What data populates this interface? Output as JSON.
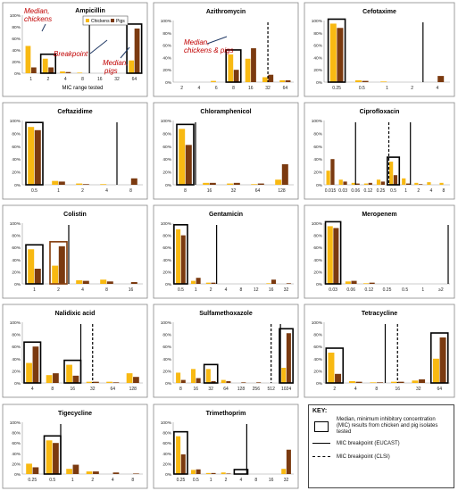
{
  "legend": {
    "chickens": "Chickens",
    "pigs": "Pigs"
  },
  "colors": {
    "chickens": "#F8B912",
    "pigs": "#7B3A10",
    "arrow": "#1F3864",
    "annotation": "#C00000"
  },
  "key": {
    "title": "KEY:",
    "items": [
      {
        "symbol": "box",
        "text": "Median, minimum inhibitory concentration (MIC) results from chicken and pig isolates tested"
      },
      {
        "symbol": "solid",
        "text": "MIC breakpoint (EUCAST)"
      },
      {
        "symbol": "dashed",
        "text": "MIC breakpoint (CLSI)"
      }
    ]
  },
  "chart_data": [
    {
      "type": "bar",
      "title": "Ampicillin",
      "xlabel": "MIC range tested",
      "ylabel": "",
      "ylim": [
        0,
        100
      ],
      "y_ticks": [
        "0%",
        "20%",
        "40%",
        "60%",
        "80%",
        "100%"
      ],
      "categories": [
        "1",
        "2",
        "4",
        "8",
        "16",
        "32",
        "64"
      ],
      "series": [
        {
          "name": "Chickens",
          "values": [
            47,
            25,
            3,
            1,
            0,
            0,
            22
          ]
        },
        {
          "name": "Pigs",
          "values": [
            10,
            10,
            2,
            0,
            0,
            0,
            77
          ]
        }
      ],
      "median_boxes": [
        {
          "category": "2"
        },
        {
          "category": "64"
        }
      ],
      "breakpoints": [
        {
          "category": "8",
          "position": "right",
          "style": "solid"
        }
      ],
      "annotations": [
        {
          "text": "Median, chickens"
        },
        {
          "text": "Breakpoint"
        },
        {
          "text": "Median, pigs"
        }
      ]
    },
    {
      "type": "bar",
      "title": "Azithromycin",
      "xlabel": "",
      "ylabel": "",
      "ylim": [
        0,
        100
      ],
      "y_ticks": [
        "0%",
        "20%",
        "40%",
        "60%",
        "80%",
        "100%"
      ],
      "categories": [
        "2",
        "4",
        "6",
        "8",
        "16",
        "32",
        "64"
      ],
      "series": [
        {
          "name": "Chickens",
          "values": [
            0,
            0,
            2,
            45,
            38,
            8,
            3
          ]
        },
        {
          "name": "Pigs",
          "values": [
            0,
            0,
            0,
            20,
            55,
            12,
            3
          ]
        }
      ],
      "median_boxes": [
        {
          "category": "8"
        }
      ],
      "breakpoints": [
        {
          "category": "32",
          "position": "center",
          "style": "dashed"
        }
      ],
      "annotations": [
        {
          "text": "Median, chickens & pigs"
        }
      ]
    },
    {
      "type": "bar",
      "title": "Cefotaxime",
      "xlabel": "",
      "ylabel": "",
      "ylim": [
        0,
        100
      ],
      "y_ticks": [
        "0%",
        "20%",
        "40%",
        "60%",
        "80%",
        "100%"
      ],
      "categories": [
        "0.25",
        "0.5",
        "1",
        "2",
        "4"
      ],
      "series": [
        {
          "name": "Chickens",
          "values": [
            95,
            3,
            1,
            0,
            0
          ]
        },
        {
          "name": "Pigs",
          "values": [
            88,
            2,
            0,
            0,
            10
          ]
        }
      ],
      "median_boxes": [
        {
          "category": "0.25"
        }
      ],
      "breakpoints": [
        {
          "category": "2",
          "position": "right",
          "style": "solid"
        }
      ]
    },
    {
      "type": "bar",
      "title": "Ceftazidime",
      "xlabel": "",
      "ylabel": "",
      "ylim": [
        0,
        100
      ],
      "y_ticks": [
        "0%",
        "20%",
        "40%",
        "60%",
        "80%",
        "100%"
      ],
      "categories": [
        "0.5",
        "1",
        "2",
        "4",
        "8"
      ],
      "series": [
        {
          "name": "Chickens",
          "values": [
            90,
            6,
            2,
            1,
            0
          ]
        },
        {
          "name": "Pigs",
          "values": [
            85,
            5,
            1,
            0,
            10
          ]
        }
      ],
      "median_boxes": [
        {
          "category": "0.5"
        }
      ],
      "breakpoints": [
        {
          "category": "4",
          "position": "right",
          "style": "solid"
        }
      ]
    },
    {
      "type": "bar",
      "title": "Chloramphenicol",
      "xlabel": "",
      "ylabel": "",
      "ylim": [
        0,
        100
      ],
      "y_ticks": [
        "0%",
        "20%",
        "40%",
        "60%",
        "80%",
        "100%"
      ],
      "categories": [
        "8",
        "16",
        "32",
        "64",
        "128"
      ],
      "series": [
        {
          "name": "Chickens",
          "values": [
            87,
            3,
            2,
            1,
            8
          ]
        },
        {
          "name": "Pigs",
          "values": [
            62,
            3,
            3,
            2,
            32
          ]
        }
      ],
      "median_boxes": [
        {
          "category": "8"
        }
      ],
      "breakpoints": [
        {
          "category": "8",
          "position": "right",
          "style": "solid"
        }
      ]
    },
    {
      "type": "bar",
      "title": "Ciprofloxacin",
      "xlabel": "",
      "ylabel": "",
      "ylim": [
        0,
        100
      ],
      "y_ticks": [
        "0%",
        "20%",
        "40%",
        "60%",
        "80%",
        "100%"
      ],
      "categories": [
        "0.015",
        "0.03",
        "0.06",
        "0.12",
        "0.25",
        "0.5",
        "1",
        "2",
        "4",
        "8"
      ],
      "series": [
        {
          "name": "Chickens",
          "values": [
            22,
            8,
            3,
            2,
            8,
            36,
            10,
            3,
            4,
            3
          ]
        },
        {
          "name": "Pigs",
          "values": [
            40,
            5,
            2,
            3,
            5,
            15,
            2,
            1,
            0,
            0
          ]
        }
      ],
      "median_boxes": [
        {
          "category": "0.5"
        }
      ],
      "breakpoints": [
        {
          "category": "0.06",
          "position": "center",
          "style": "solid"
        },
        {
          "category": "0.5",
          "position": "left",
          "style": "dashed"
        },
        {
          "category": "1",
          "position": "right",
          "style": "solid"
        }
      ]
    },
    {
      "type": "bar",
      "title": "Colistin",
      "xlabel": "",
      "ylabel": "",
      "ylim": [
        0,
        100
      ],
      "y_ticks": [
        "0%",
        "20%",
        "40%",
        "60%",
        "80%",
        "100%"
      ],
      "categories": [
        "1",
        "2",
        "4",
        "8",
        "16"
      ],
      "series": [
        {
          "name": "Chickens",
          "values": [
            57,
            30,
            6,
            7,
            0
          ]
        },
        {
          "name": "Pigs",
          "values": [
            25,
            62,
            5,
            4,
            3
          ]
        }
      ],
      "median_boxes": [
        {
          "category": "1",
          "color": "#000000"
        },
        {
          "category": "2",
          "color": "#843C0C"
        }
      ],
      "breakpoints": [
        {
          "category": "2",
          "position": "right",
          "style": "solid"
        }
      ]
    },
    {
      "type": "bar",
      "title": "Gentamicin",
      "xlabel": "",
      "ylabel": "",
      "ylim": [
        0,
        100
      ],
      "y_ticks": [
        "0%",
        "20%",
        "40%",
        "60%",
        "80%",
        "100%"
      ],
      "categories": [
        "0.5",
        "1",
        "2",
        "4",
        "8",
        "12",
        "16",
        "32"
      ],
      "series": [
        {
          "name": "Chickens",
          "values": [
            90,
            5,
            2,
            0,
            0,
            0,
            1,
            0
          ]
        },
        {
          "name": "Pigs",
          "values": [
            80,
            10,
            2,
            0,
            0,
            0,
            7,
            1
          ]
        }
      ],
      "median_boxes": [
        {
          "category": "0.5"
        }
      ],
      "breakpoints": [
        {
          "category": "2",
          "position": "right",
          "style": "solid"
        }
      ]
    },
    {
      "type": "bar",
      "title": "Meropenem",
      "xlabel": "",
      "ylabel": "",
      "ylim": [
        0,
        100
      ],
      "y_ticks": [
        "0%",
        "20%",
        "40%",
        "60%",
        "80%",
        "100%"
      ],
      "categories": [
        "0.03",
        "0.06",
        "0.12",
        "0.25",
        "0.5",
        "1",
        "≥2"
      ],
      "series": [
        {
          "name": "Chickens",
          "values": [
            95,
            4,
            1,
            0,
            0,
            0,
            0
          ]
        },
        {
          "name": "Pigs",
          "values": [
            92,
            5,
            2,
            0,
            0,
            0,
            0
          ]
        }
      ],
      "median_boxes": [
        {
          "category": "0.03"
        }
      ],
      "breakpoints": [
        {
          "category": "≥2",
          "position": "right",
          "style": "solid"
        }
      ]
    },
    {
      "type": "bar",
      "title": "Nalidixic acid",
      "xlabel": "",
      "ylabel": "",
      "ylim": [
        0,
        100
      ],
      "y_ticks": [
        "0%",
        "20%",
        "40%",
        "60%",
        "80%",
        "100%"
      ],
      "categories": [
        "4",
        "8",
        "16",
        "32",
        "64",
        "128"
      ],
      "series": [
        {
          "name": "Chickens",
          "values": [
            33,
            13,
            30,
            2,
            2,
            16
          ]
        },
        {
          "name": "Pigs",
          "values": [
            60,
            16,
            12,
            2,
            1,
            10
          ]
        }
      ],
      "median_boxes": [
        {
          "category": "4"
        },
        {
          "category": "16"
        }
      ],
      "breakpoints": [
        {
          "category": "16",
          "position": "right",
          "style": "solid"
        },
        {
          "category": "32",
          "position": "center",
          "style": "dashed"
        }
      ]
    },
    {
      "type": "bar",
      "title": "Sulfamethoxazole",
      "xlabel": "",
      "ylabel": "",
      "ylim": [
        0,
        100
      ],
      "y_ticks": [
        "0%",
        "20%",
        "40%",
        "60%",
        "80%",
        "100%"
      ],
      "categories": [
        "8",
        "16",
        "32",
        "64",
        "128",
        "256",
        "512",
        "1024"
      ],
      "series": [
        {
          "name": "Chickens",
          "values": [
            17,
            23,
            23,
            5,
            0,
            0,
            0,
            25
          ]
        },
        {
          "name": "Pigs",
          "values": [
            5,
            8,
            3,
            3,
            1,
            1,
            0,
            82
          ]
        }
      ],
      "median_boxes": [
        {
          "category": "32"
        },
        {
          "category": "1024"
        }
      ],
      "breakpoints": [
        {
          "category": "512",
          "position": "center",
          "style": "dashed"
        },
        {
          "category": "1024",
          "position": "left",
          "style": "solid"
        }
      ]
    },
    {
      "type": "bar",
      "title": "Tetracycline",
      "xlabel": "",
      "ylabel": "",
      "ylim": [
        0,
        100
      ],
      "y_ticks": [
        "0%",
        "20%",
        "40%",
        "60%",
        "80%",
        "100%"
      ],
      "categories": [
        "2",
        "4",
        "8",
        "16",
        "32",
        "64"
      ],
      "series": [
        {
          "name": "Chickens",
          "values": [
            50,
            3,
            1,
            2,
            4,
            40
          ]
        },
        {
          "name": "Pigs",
          "values": [
            15,
            2,
            1,
            2,
            6,
            75
          ]
        }
      ],
      "median_boxes": [
        {
          "category": "2"
        },
        {
          "category": "64"
        }
      ],
      "breakpoints": [
        {
          "category": "8",
          "position": "right",
          "style": "solid"
        },
        {
          "category": "16",
          "position": "center",
          "style": "dashed"
        }
      ]
    },
    {
      "type": "bar",
      "title": "Tigecycline",
      "xlabel": "",
      "ylabel": "",
      "ylim": [
        0,
        100
      ],
      "y_ticks": [
        "0%",
        "20%",
        "40%",
        "60%",
        "80%",
        "100%"
      ],
      "categories": [
        "0.25",
        "0.5",
        "1",
        "2",
        "4",
        "8"
      ],
      "series": [
        {
          "name": "Chickens",
          "values": [
            20,
            65,
            10,
            5,
            0,
            0
          ]
        },
        {
          "name": "Pigs",
          "values": [
            13,
            60,
            18,
            5,
            3,
            1
          ]
        }
      ],
      "median_boxes": [
        {
          "category": "0.5"
        }
      ],
      "breakpoints": [
        {
          "category": "0.5",
          "position": "right",
          "style": "solid"
        }
      ]
    },
    {
      "type": "bar",
      "title": "Trimethoprim",
      "xlabel": "",
      "ylabel": "",
      "ylim": [
        0,
        100
      ],
      "y_ticks": [
        "0%",
        "20%",
        "40%",
        "60%",
        "80%",
        "100%"
      ],
      "categories": [
        "0.25",
        "0.5",
        "1",
        "2",
        "4",
        "8",
        "16",
        "32"
      ],
      "series": [
        {
          "name": "Chickens",
          "values": [
            73,
            8,
            2,
            3,
            0,
            0,
            0,
            10
          ]
        },
        {
          "name": "Pigs",
          "values": [
            38,
            9,
            2,
            1,
            0,
            0,
            0,
            47
          ]
        }
      ],
      "median_boxes": [
        {
          "category": "0.25"
        },
        {
          "category": "4"
        }
      ],
      "breakpoints": [
        {
          "category": "4",
          "position": "right",
          "style": "solid"
        }
      ]
    }
  ]
}
